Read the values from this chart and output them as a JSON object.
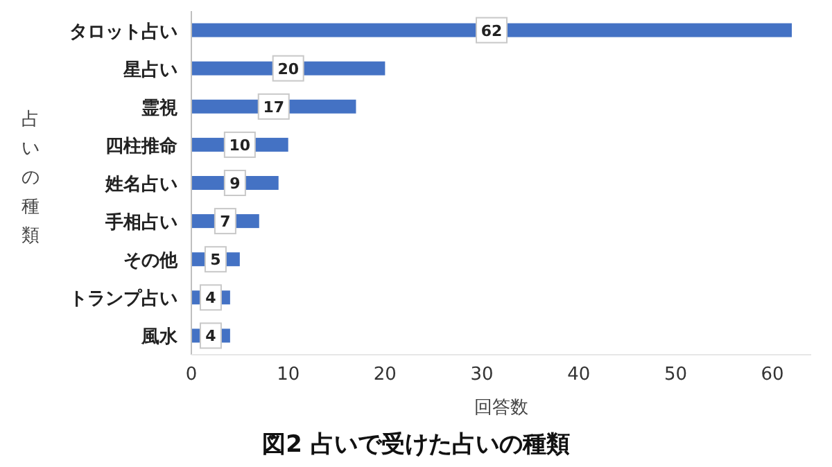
{
  "chart_data": {
    "type": "bar",
    "orientation": "horizontal",
    "title": "図2 占いで受けた占いの種類",
    "xlabel": "回答数",
    "ylabel": "占いの種類",
    "categories": [
      "タロット占い",
      "星占い",
      "霊視",
      "四柱推命",
      "姓名占い",
      "手相占い",
      "その他",
      "トランプ占い",
      "風水"
    ],
    "values": [
      62,
      20,
      17,
      10,
      9,
      7,
      5,
      4,
      4
    ],
    "color": "#4472c4",
    "data_labels": true,
    "xlim": [
      0,
      64
    ],
    "xticks": [
      0,
      10,
      20,
      30,
      40,
      50,
      60
    ]
  }
}
